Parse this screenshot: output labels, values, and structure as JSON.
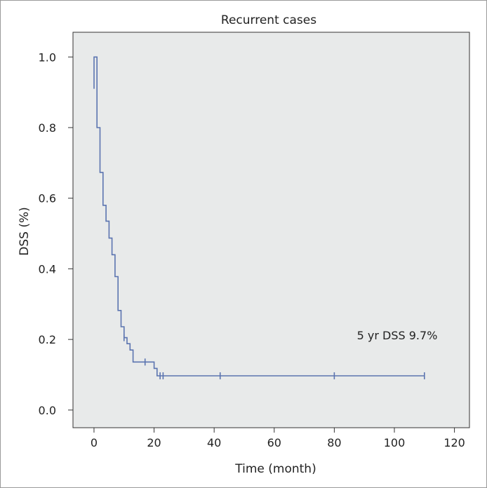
{
  "chart_data": {
    "type": "line",
    "subtype": "kaplan-meier-step",
    "title": "Recurrent cases",
    "xlabel": "Time (month)",
    "ylabel": "DSS (%)",
    "xlim": [
      -7,
      125
    ],
    "ylim": [
      -0.05,
      1.07
    ],
    "x_ticks": [
      0,
      20,
      40,
      60,
      80,
      100,
      120
    ],
    "y_ticks": [
      "0.0",
      "0.2",
      "0.4",
      "0.6",
      "0.8",
      "1.0"
    ],
    "y_tick_values": [
      0.0,
      0.2,
      0.4,
      0.6,
      0.8,
      1.0
    ],
    "grid": false,
    "legend": "none",
    "plot_background": "#e8eaea",
    "line_color": "#5b74b0",
    "annotation": {
      "text": "5 yr DSS 9.7%",
      "x": 88,
      "y": 0.2
    },
    "series": [
      {
        "steps": [
          [
            0,
            0.91
          ],
          [
            0,
            1.0
          ],
          [
            1,
            1.0
          ],
          [
            1,
            0.8
          ],
          [
            2,
            0.8
          ],
          [
            2,
            0.673
          ],
          [
            3,
            0.673
          ],
          [
            3,
            0.58
          ],
          [
            4,
            0.58
          ],
          [
            4,
            0.535
          ],
          [
            5,
            0.535
          ],
          [
            5,
            0.487
          ],
          [
            6,
            0.487
          ],
          [
            6,
            0.44
          ],
          [
            7,
            0.44
          ],
          [
            7,
            0.378
          ],
          [
            8,
            0.378
          ],
          [
            8,
            0.282
          ],
          [
            9,
            0.282
          ],
          [
            9,
            0.236
          ],
          [
            10,
            0.236
          ],
          [
            10,
            0.205
          ],
          [
            11,
            0.205
          ],
          [
            11,
            0.188
          ],
          [
            12,
            0.188
          ],
          [
            12,
            0.17
          ],
          [
            13,
            0.17
          ],
          [
            13,
            0.136
          ],
          [
            20,
            0.136
          ],
          [
            20,
            0.118
          ],
          [
            21,
            0.118
          ],
          [
            21,
            0.097
          ],
          [
            110,
            0.097
          ]
        ],
        "censored": [
          [
            10,
            0.205
          ],
          [
            17,
            0.136
          ],
          [
            22,
            0.097
          ],
          [
            23,
            0.097
          ],
          [
            42,
            0.097
          ],
          [
            80,
            0.097
          ],
          [
            110,
            0.097
          ]
        ]
      }
    ]
  }
}
